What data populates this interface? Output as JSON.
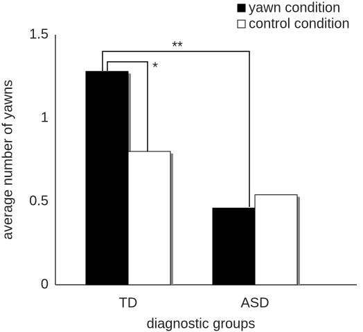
{
  "chart_data": {
    "type": "bar",
    "categories": [
      "TD",
      "ASD"
    ],
    "series": [
      {
        "name": "yawn condition",
        "color": "#000000",
        "values": [
          1.28,
          0.46
        ]
      },
      {
        "name": "control condition",
        "color": "#ffffff",
        "values": [
          0.8,
          0.54
        ]
      }
    ],
    "ylim": [
      0,
      1.5
    ],
    "yticks": [
      0,
      0.5,
      1,
      1.5
    ],
    "x_label": "diagnostic groups",
    "y_label": "average number of yawns",
    "annotations": [
      "**",
      "*"
    ],
    "grid": false
  }
}
